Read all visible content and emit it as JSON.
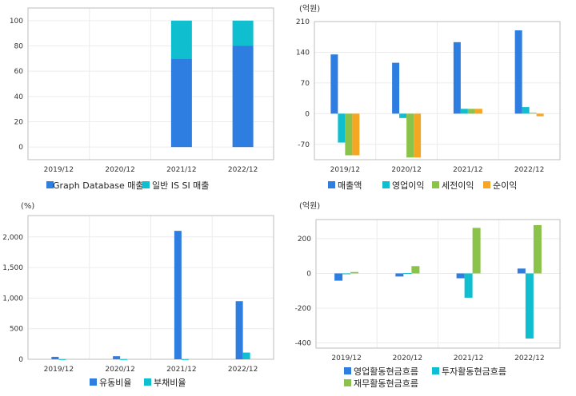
{
  "chart_data": [
    {
      "type": "bar",
      "unit": "",
      "categories": [
        "2019/12",
        "2020/12",
        "2021/12",
        "2022/12"
      ],
      "stacked": true,
      "ylim": [
        -10,
        110
      ],
      "yticks": [
        0,
        20,
        40,
        60,
        80,
        100
      ],
      "series": [
        {
          "name": "Graph Database 매출",
          "color": "#2e7de1",
          "values": [
            0,
            0,
            70,
            80
          ]
        },
        {
          "name": "일반 IS SI 매출",
          "color": "#0fbfcf",
          "values": [
            0,
            0,
            30,
            20
          ]
        }
      ]
    },
    {
      "type": "bar",
      "unit": "(억원)",
      "categories": [
        "2019/12",
        "2020/12",
        "2021/12",
        "2022/12"
      ],
      "stacked": false,
      "ylim": [
        -105,
        210
      ],
      "yticks": [
        -70,
        0,
        70,
        140,
        210
      ],
      "series": [
        {
          "name": "매출액",
          "color": "#2e7de1",
          "values": [
            135,
            116,
            163,
            190
          ]
        },
        {
          "name": "영업이익",
          "color": "#0fbfcf",
          "values": [
            -66,
            -10,
            11,
            15
          ]
        },
        {
          "name": "세전이익",
          "color": "#8bc34a",
          "values": [
            -95,
            -100,
            11,
            2
          ]
        },
        {
          "name": "순이익",
          "color": "#f5a623",
          "values": [
            -95,
            -100,
            11,
            -6
          ]
        }
      ]
    },
    {
      "type": "bar",
      "unit": "(%)",
      "categories": [
        "2019/12",
        "2020/12",
        "2021/12",
        "2022/12"
      ],
      "stacked": false,
      "ylim": [
        0,
        2350
      ],
      "yticks": [
        0,
        500,
        1000,
        1500,
        2000
      ],
      "yticklabels": [
        "0",
        "500",
        "1,000",
        "1,500",
        "2,000"
      ],
      "series": [
        {
          "name": "유동비율",
          "color": "#2e7de1",
          "values": [
            40,
            50,
            2100,
            950
          ]
        },
        {
          "name": "부채비율",
          "color": "#0fbfcf",
          "values": [
            2,
            2,
            2,
            110
          ]
        }
      ]
    },
    {
      "type": "bar",
      "unit": "(억원)",
      "categories": [
        "2019/12",
        "2020/12",
        "2021/12",
        "2022/12"
      ],
      "stacked": false,
      "ylim": [
        -430,
        310
      ],
      "yticks": [
        -400,
        -200,
        0,
        200
      ],
      "series": [
        {
          "name": "영업활동현금흐름",
          "color": "#2e7de1",
          "values": [
            -42,
            -18,
            -28,
            28
          ]
        },
        {
          "name": "투자활동현금흐름",
          "color": "#0fbfcf",
          "values": [
            -5,
            2,
            -140,
            -375
          ]
        },
        {
          "name": "재무활동현금흐름",
          "color": "#8bc34a",
          "values": [
            8,
            42,
            262,
            278
          ]
        }
      ]
    }
  ]
}
